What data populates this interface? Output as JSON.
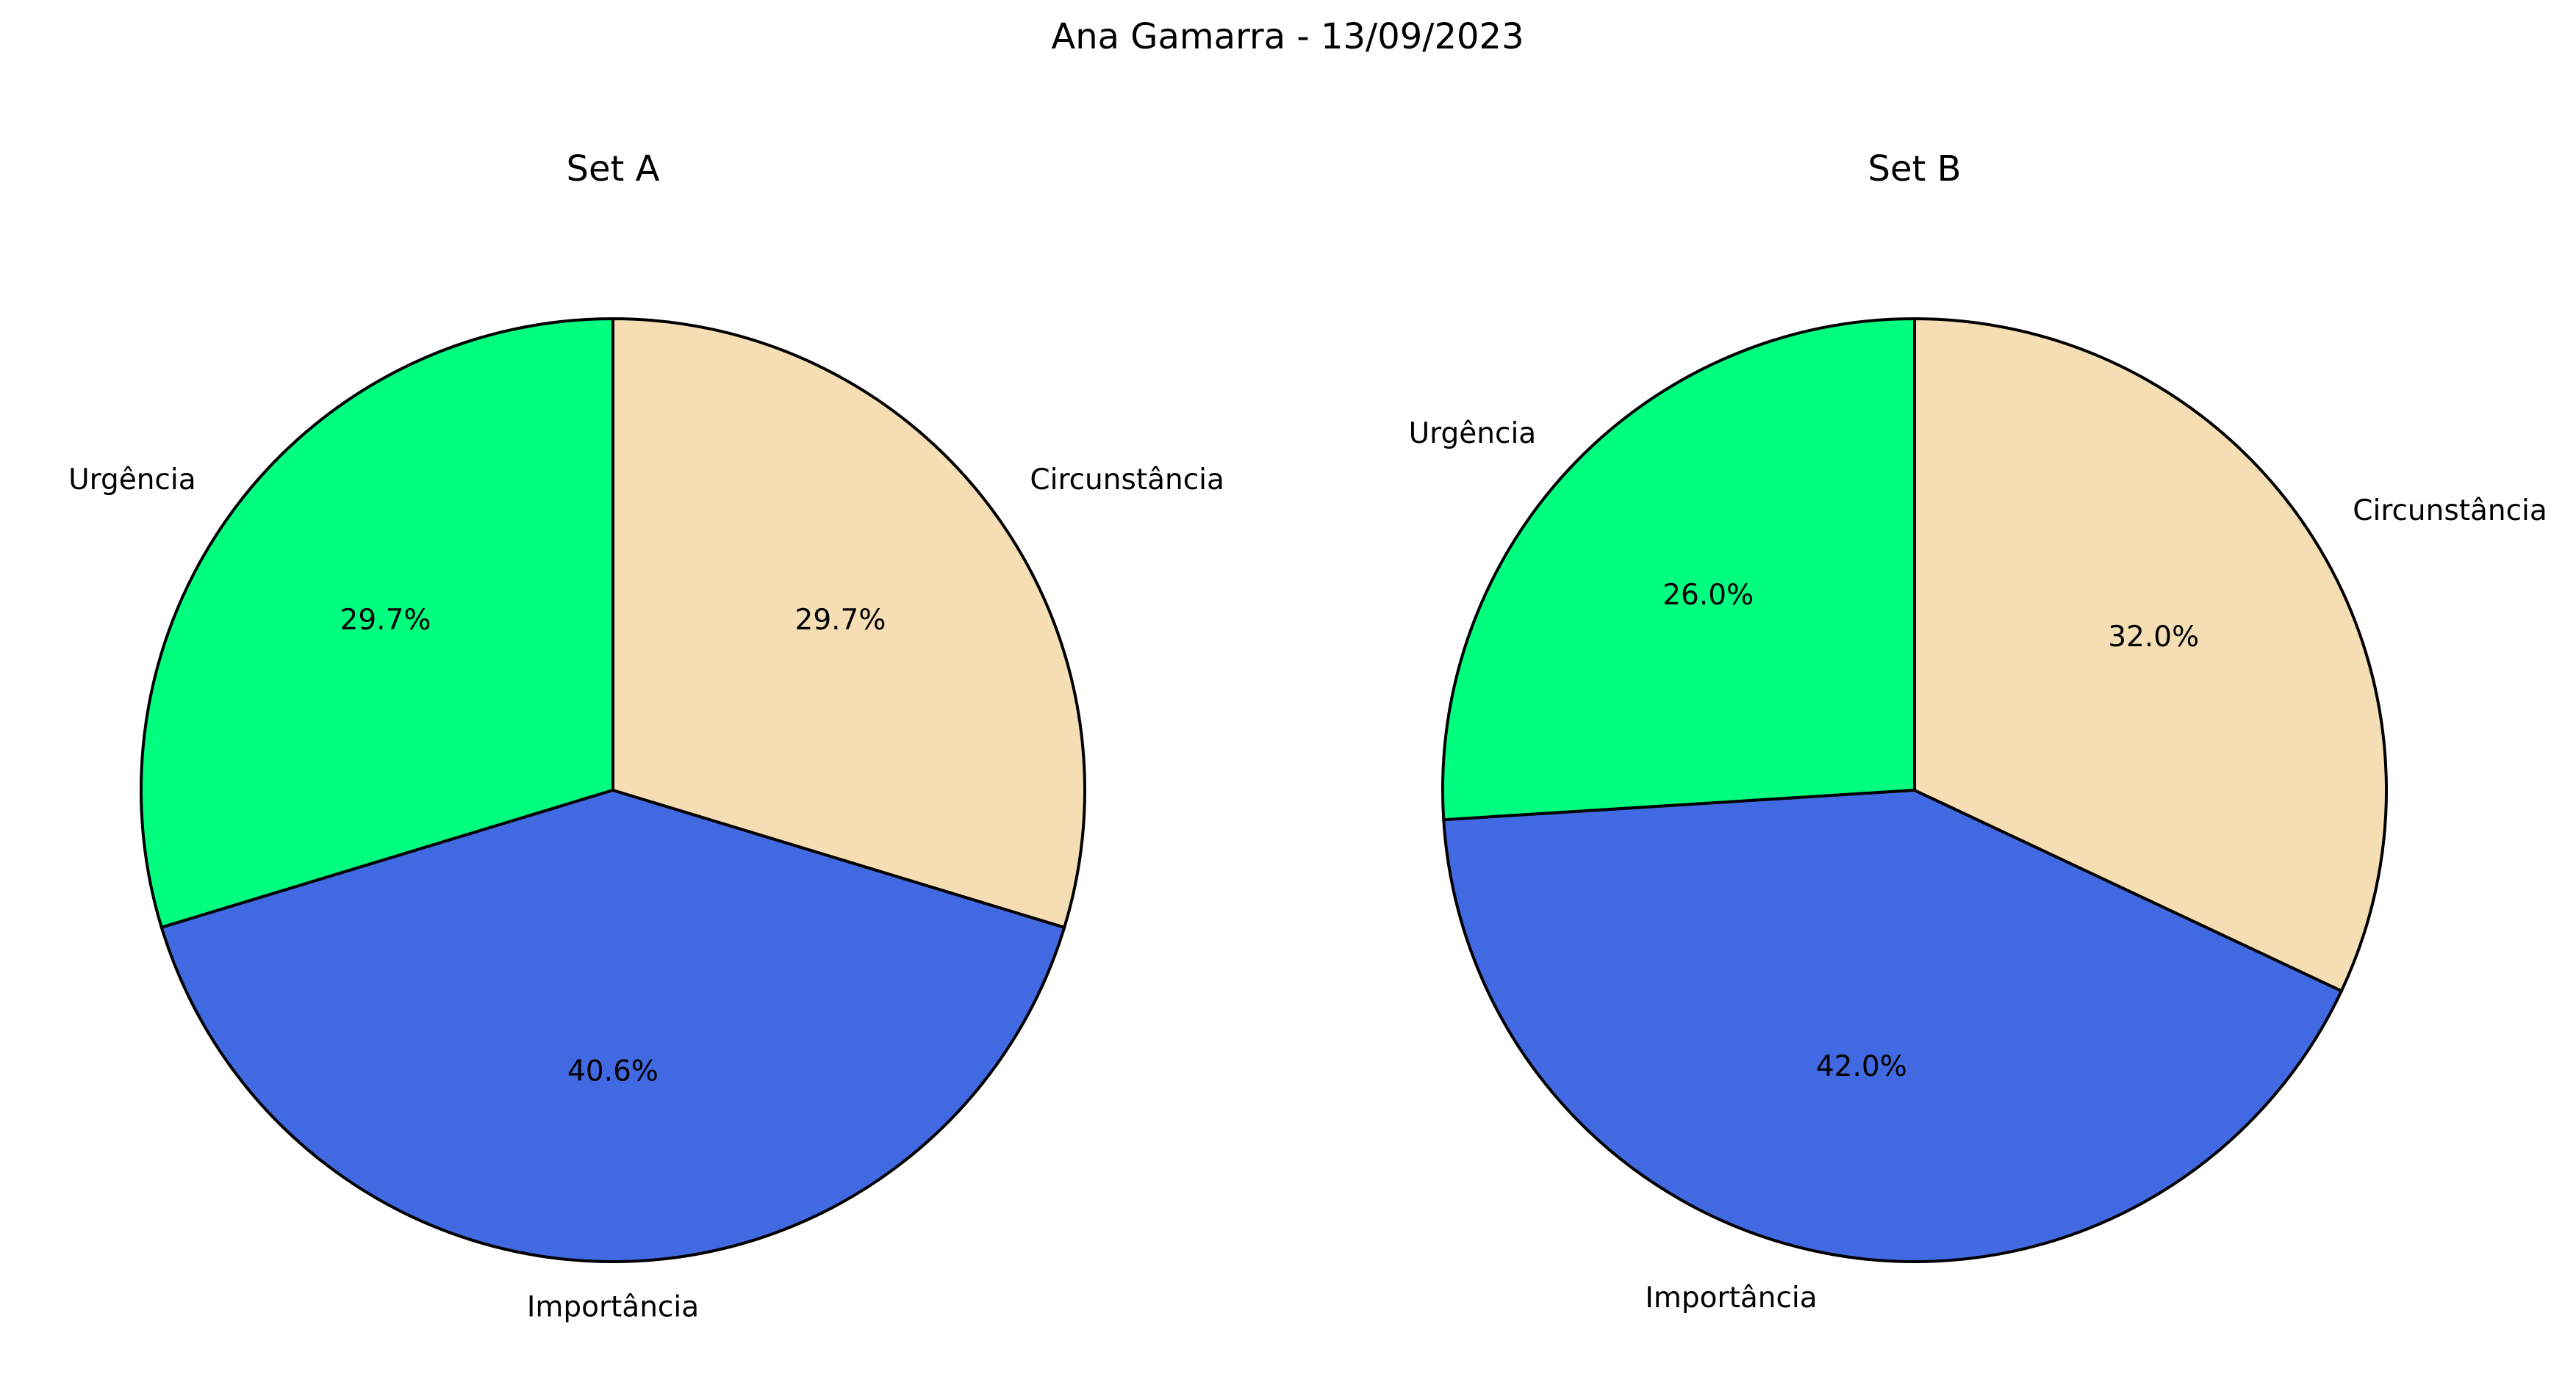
{
  "figure": {
    "title": "Ana Gamarra - 13/09/2023"
  },
  "chart_data": [
    {
      "type": "pie",
      "title": "Set A",
      "start_angle_deg": 90,
      "direction": "counterclockwise",
      "slices": [
        {
          "label": "Urgência",
          "value": 29.7,
          "pct_label": "29.7%",
          "color": "#00FF7F"
        },
        {
          "label": "Importância",
          "value": 40.6,
          "pct_label": "40.6%",
          "color": "#4169E1"
        },
        {
          "label": "Circunstância",
          "value": 29.7,
          "pct_label": "29.7%",
          "color": "#F5DEB3"
        }
      ]
    },
    {
      "type": "pie",
      "title": "Set B",
      "start_angle_deg": 90,
      "direction": "counterclockwise",
      "slices": [
        {
          "label": "Urgência",
          "value": 26.0,
          "pct_label": "26.0%",
          "color": "#00FF7F"
        },
        {
          "label": "Importância",
          "value": 42.0,
          "pct_label": "42.0%",
          "color": "#4169E1"
        },
        {
          "label": "Circunstância",
          "value": 32.0,
          "pct_label": "32.0%",
          "color": "#F5DEB3"
        }
      ]
    }
  ]
}
